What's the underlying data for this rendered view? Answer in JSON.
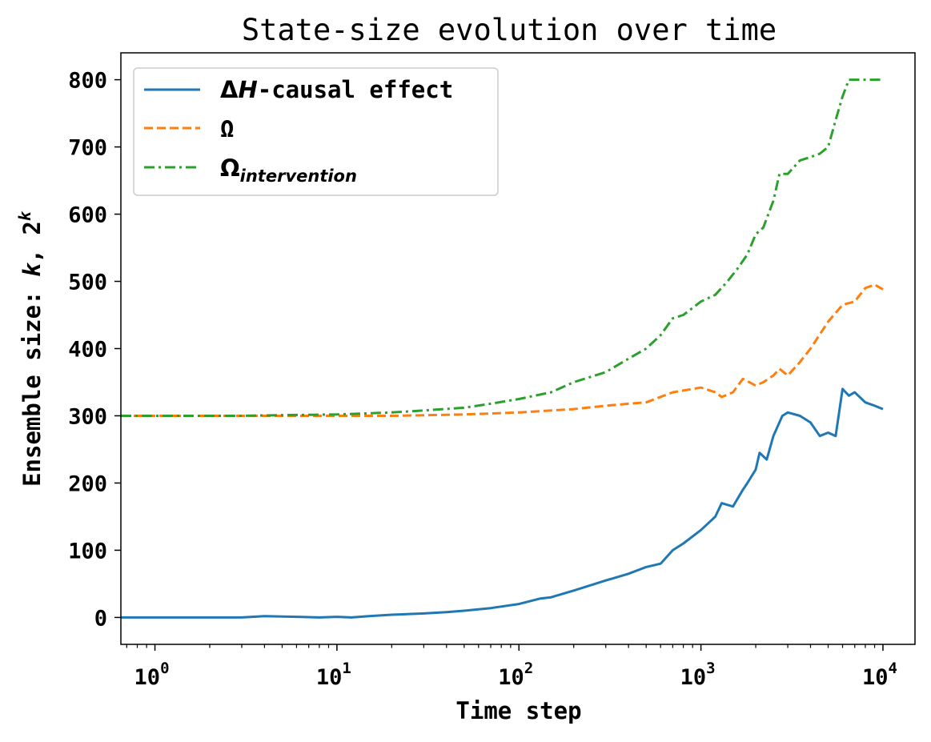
{
  "chart_data": {
    "type": "line",
    "title": "State-size evolution over time",
    "xlabel": "Time step",
    "ylabel": "Ensemble size: k, 2^k",
    "ylabel_parts": {
      "prefix": "Ensemble size: ",
      "k": "k",
      "sep": ", 2",
      "sup": "k"
    },
    "x_scale": "log",
    "xlim": [
      0.65,
      15000
    ],
    "ylim": [
      -40,
      840
    ],
    "grid": false,
    "legend_position": "top-left",
    "x_ticks": [
      {
        "value": 1,
        "base": "10",
        "exp": "0"
      },
      {
        "value": 10,
        "base": "10",
        "exp": "1"
      },
      {
        "value": 100,
        "base": "10",
        "exp": "2"
      },
      {
        "value": 1000,
        "base": "10",
        "exp": "3"
      },
      {
        "value": 10000,
        "base": "10",
        "exp": "4"
      }
    ],
    "y_ticks": [
      0,
      100,
      200,
      300,
      400,
      500,
      600,
      700,
      800
    ],
    "y_tick_labels": [
      "0",
      "100",
      "200",
      "300",
      "400",
      "500",
      "600",
      "700",
      "800"
    ],
    "series": [
      {
        "name": "ΔH-causal effect",
        "legend_delta": "Δ",
        "legend_H": "H",
        "legend_rest": "-causal effect",
        "color": "#1f77b4",
        "style": "solid",
        "x": [
          0.65,
          3,
          4,
          6,
          8,
          10,
          12,
          15,
          20,
          30,
          40,
          50,
          70,
          100,
          130,
          150,
          200,
          300,
          400,
          500,
          600,
          700,
          800,
          1000,
          1200,
          1300,
          1500,
          1700,
          1800,
          2000,
          2100,
          2300,
          2500,
          2800,
          3000,
          3500,
          4000,
          4500,
          5000,
          5500,
          6000,
          6500,
          7000,
          8000,
          9000,
          10000
        ],
        "y": [
          0,
          0,
          2,
          1,
          0,
          1,
          0,
          2,
          4,
          6,
          8,
          10,
          14,
          20,
          28,
          30,
          40,
          55,
          65,
          75,
          80,
          100,
          110,
          130,
          150,
          170,
          165,
          190,
          200,
          220,
          245,
          235,
          270,
          300,
          305,
          300,
          290,
          270,
          275,
          270,
          340,
          330,
          335,
          320,
          315,
          310
        ]
      },
      {
        "name": "Ω",
        "legend_main": "Ω",
        "legend_sub": "",
        "color": "#ff7f0e",
        "style": "dashed",
        "x": [
          0.65,
          5,
          10,
          20,
          50,
          100,
          200,
          300,
          400,
          500,
          700,
          900,
          1000,
          1200,
          1300,
          1500,
          1700,
          2000,
          2200,
          2500,
          2700,
          3000,
          3500,
          4000,
          5000,
          6000,
          7000,
          8000,
          9000,
          10000
        ],
        "y": [
          300,
          300,
          300,
          300,
          302,
          305,
          310,
          315,
          318,
          320,
          335,
          340,
          342,
          335,
          328,
          335,
          355,
          345,
          350,
          360,
          370,
          360,
          380,
          400,
          440,
          465,
          470,
          490,
          495,
          488
        ]
      },
      {
        "name": "Ω_intervention",
        "legend_main": "Ω",
        "legend_sub": "intervention",
        "color": "#2ca02c",
        "style": "dashdot",
        "x": [
          0.65,
          3,
          5,
          10,
          20,
          30,
          50,
          70,
          100,
          150,
          200,
          300,
          400,
          500,
          600,
          700,
          800,
          1000,
          1200,
          1400,
          1600,
          1800,
          2000,
          2200,
          2500,
          2700,
          3000,
          3500,
          4000,
          4500,
          5000,
          5500,
          6000,
          6500,
          7000,
          8000,
          10000
        ],
        "y": [
          300,
          300,
          301,
          302,
          305,
          308,
          312,
          318,
          325,
          335,
          350,
          365,
          385,
          400,
          420,
          445,
          450,
          470,
          480,
          500,
          520,
          540,
          570,
          580,
          620,
          660,
          660,
          680,
          685,
          690,
          700,
          740,
          775,
          800,
          800,
          800,
          800
        ]
      }
    ]
  }
}
